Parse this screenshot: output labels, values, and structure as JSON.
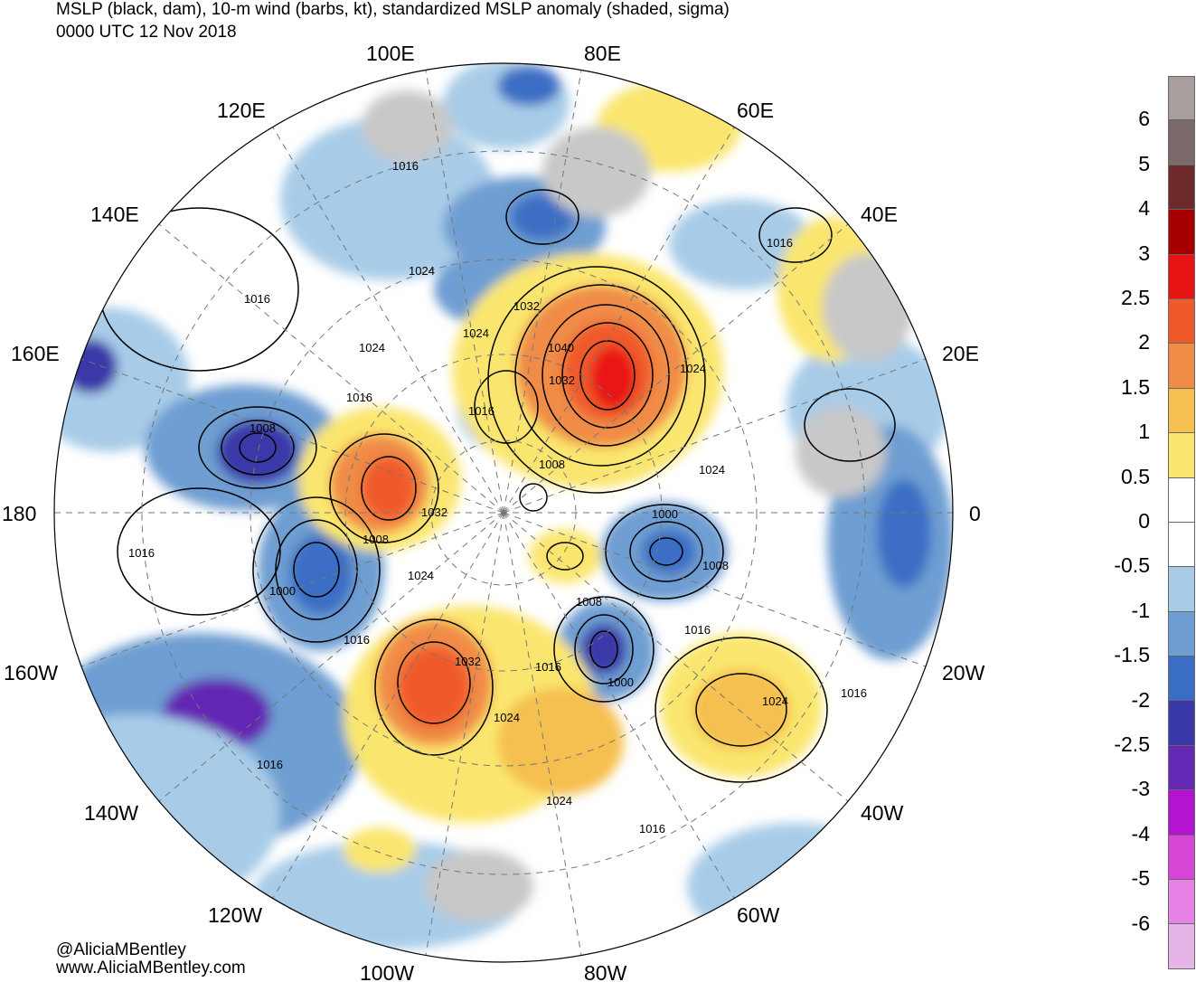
{
  "title": {
    "line1": "MSLP (black, dam), 10-m wind (barbs, kt), standardized MSLP anomaly (shaded, sigma)",
    "line2": "0000 UTC 12 Nov 2018"
  },
  "credit": {
    "twitter": "@AliciaMBentley",
    "website": "www.AliciaMBentley.com"
  },
  "longitude_labels": [
    "100E",
    "80E",
    "120E",
    "60E",
    "140E",
    "40E",
    "160E",
    "20E",
    "180",
    "0",
    "160W",
    "20W",
    "140W",
    "40W",
    "120W",
    "60W",
    "100W",
    "80W"
  ],
  "isobar_labels": [
    "1016",
    "1024",
    "1016",
    "1024",
    "1032",
    "1024",
    "1040",
    "1032",
    "1024",
    "1016",
    "1016",
    "1008",
    "1016",
    "1008",
    "1024",
    "1032",
    "1000",
    "1016",
    "1008",
    "1008",
    "1024",
    "1000",
    "1008",
    "1016",
    "1016",
    "1032",
    "1016",
    "1000",
    "1024",
    "1016",
    "1024",
    "1016",
    "1024",
    "1016"
  ],
  "colorbar": {
    "labels": [
      "6",
      "5",
      "4",
      "3",
      "2.5",
      "2",
      "1.5",
      "1",
      "0.5",
      "0",
      "-0.5",
      "-1",
      "-1.5",
      "-2",
      "-2.5",
      "-3",
      "-4",
      "-5",
      "-6"
    ],
    "colors": [
      "#a89e9e",
      "#7a6a6a",
      "#6e2a2a",
      "#a80000",
      "#e81414",
      "#f05a2a",
      "#f08c46",
      "#f5c050",
      "#fae66e",
      "#ffffff",
      "#ffffff",
      "#a8cce8",
      "#6e9ed2",
      "#3a6ec4",
      "#3a38a8",
      "#6428b4",
      "#b414d2",
      "#d846d8",
      "#e682e6",
      "#e6b4e6"
    ]
  },
  "legend_colors": {
    "land": "#c8c8c8",
    "positive_anomaly_max": "#e81414",
    "negative_anomaly_max": "#3a38a8"
  }
}
